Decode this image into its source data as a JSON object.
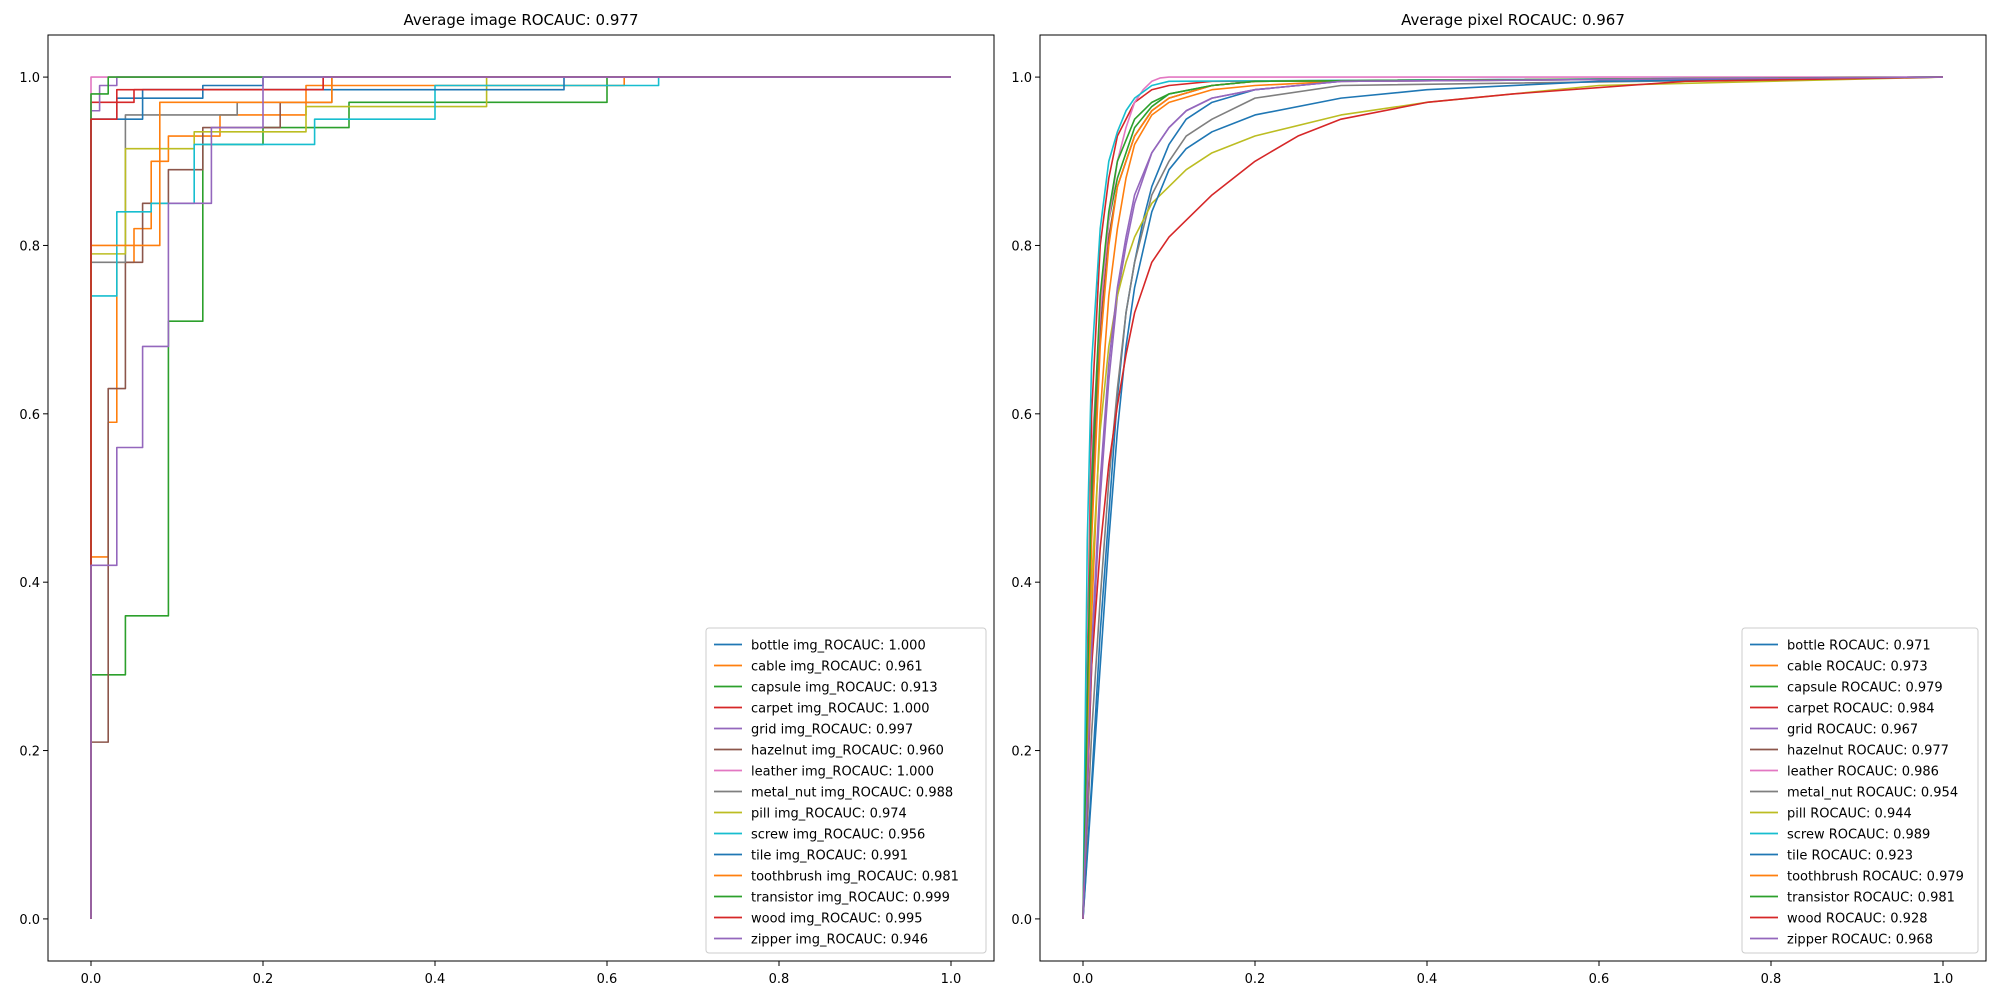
{
  "chart_data": [
    {
      "type": "line",
      "title": "Average image ROCAUC: 0.977",
      "xlabel": "",
      "ylabel": "",
      "xlim": [
        -0.05,
        1.05
      ],
      "ylim": [
        -0.05,
        1.05
      ],
      "xticks": [
        "0.0",
        "0.2",
        "0.4",
        "0.6",
        "0.8",
        "1.0"
      ],
      "yticks": [
        "0.0",
        "0.2",
        "0.4",
        "0.6",
        "0.8",
        "1.0"
      ],
      "grid": false,
      "legend_position": "lower-right",
      "series": [
        {
          "name": "bottle img_ROCAUC: 1.000",
          "color": "#1f77b4",
          "x": [
            0,
            0,
            0.03,
            0.03,
            0.13,
            0.13,
            0.2,
            0.2,
            1.0
          ],
          "y": [
            0,
            0.95,
            0.95,
            0.975,
            0.975,
            0.99,
            0.99,
            1.0,
            1.0
          ]
        },
        {
          "name": "cable img_ROCAUC: 0.961",
          "color": "#ff7f0e",
          "x": [
            0,
            0,
            0.02,
            0.02,
            0.03,
            0.03,
            0.05,
            0.05,
            0.07,
            0.07,
            0.09,
            0.09,
            0.15,
            0.15,
            0.25,
            0.25,
            0.62,
            0.62,
            1.0
          ],
          "y": [
            0,
            0.43,
            0.43,
            0.59,
            0.59,
            0.78,
            0.78,
            0.82,
            0.82,
            0.9,
            0.9,
            0.93,
            0.93,
            0.955,
            0.955,
            0.99,
            0.99,
            1.0,
            1.0
          ]
        },
        {
          "name": "capsule img_ROCAUC: 0.913",
          "color": "#2ca02c",
          "x": [
            0,
            0,
            0.04,
            0.04,
            0.09,
            0.09,
            0.13,
            0.13,
            0.2,
            0.2,
            0.3,
            0.3,
            0.6,
            0.6,
            1.0
          ],
          "y": [
            0,
            0.29,
            0.29,
            0.36,
            0.36,
            0.71,
            0.71,
            0.92,
            0.92,
            0.94,
            0.94,
            0.97,
            0.97,
            1.0,
            1.0
          ]
        },
        {
          "name": "carpet img_ROCAUC: 1.000",
          "color": "#d62728",
          "x": [
            0,
            0,
            0.05,
            0.05,
            0.27,
            0.27,
            1.0
          ],
          "y": [
            0,
            0.97,
            0.97,
            0.985,
            0.985,
            1.0,
            1.0
          ]
        },
        {
          "name": "grid img_ROCAUC: 0.997",
          "color": "#9467bd",
          "x": [
            0,
            0,
            0.01,
            0.01,
            0.03,
            0.03,
            1.0
          ],
          "y": [
            0,
            0.96,
            0.96,
            0.99,
            0.99,
            1.0,
            1.0
          ]
        },
        {
          "name": "hazelnut img_ROCAUC: 0.960",
          "color": "#8c564b",
          "x": [
            0,
            0,
            0.02,
            0.02,
            0.04,
            0.04,
            0.06,
            0.06,
            0.09,
            0.09,
            0.13,
            0.13,
            0.22,
            0.22,
            0.28,
            0.28,
            1.0
          ],
          "y": [
            0,
            0.21,
            0.21,
            0.63,
            0.63,
            0.78,
            0.78,
            0.85,
            0.85,
            0.89,
            0.89,
            0.94,
            0.94,
            0.97,
            0.97,
            1.0,
            1.0
          ]
        },
        {
          "name": "leather img_ROCAUC: 1.000",
          "color": "#e377c2",
          "x": [
            0,
            0,
            1.0
          ],
          "y": [
            0,
            1.0,
            1.0
          ]
        },
        {
          "name": "metal_nut img_ROCAUC: 0.988",
          "color": "#7f7f7f",
          "x": [
            0,
            0,
            0.04,
            0.04,
            0.17,
            0.17,
            0.28,
            0.28,
            1.0
          ],
          "y": [
            0,
            0.78,
            0.78,
            0.955,
            0.955,
            0.97,
            0.97,
            1.0,
            1.0
          ]
        },
        {
          "name": "pill img_ROCAUC: 0.974",
          "color": "#bcbd22",
          "x": [
            0,
            0,
            0.04,
            0.04,
            0.12,
            0.12,
            0.25,
            0.25,
            0.46,
            0.46,
            1.0
          ],
          "y": [
            0,
            0.79,
            0.79,
            0.915,
            0.915,
            0.935,
            0.935,
            0.965,
            0.965,
            1.0,
            1.0
          ]
        },
        {
          "name": "screw img_ROCAUC: 0.956",
          "color": "#17becf",
          "x": [
            0,
            0,
            0.03,
            0.03,
            0.07,
            0.07,
            0.12,
            0.12,
            0.26,
            0.26,
            0.4,
            0.4,
            0.66,
            0.66,
            1.0
          ],
          "y": [
            0,
            0.74,
            0.74,
            0.84,
            0.84,
            0.85,
            0.85,
            0.92,
            0.92,
            0.95,
            0.95,
            0.99,
            0.99,
            1.0,
            1.0
          ]
        },
        {
          "name": "tile img_ROCAUC: 0.991",
          "color": "#1f77b4",
          "x": [
            0,
            0,
            0.06,
            0.06,
            0.55,
            0.55,
            1.0
          ],
          "y": [
            0,
            0.95,
            0.95,
            0.985,
            0.985,
            1.0,
            1.0
          ]
        },
        {
          "name": "toothbrush img_ROCAUC: 0.981",
          "color": "#ff7f0e",
          "x": [
            0,
            0,
            0.08,
            0.08,
            0.28,
            0.28,
            1.0
          ],
          "y": [
            0,
            0.8,
            0.8,
            0.97,
            0.97,
            1.0,
            1.0
          ]
        },
        {
          "name": "transistor img_ROCAUC: 0.999",
          "color": "#2ca02c",
          "x": [
            0,
            0,
            0.02,
            0.02,
            1.0
          ],
          "y": [
            0,
            0.98,
            0.98,
            1.0,
            1.0
          ]
        },
        {
          "name": "wood img_ROCAUC: 0.995",
          "color": "#d62728",
          "x": [
            0,
            0,
            0.03,
            0.03,
            0.27,
            0.27,
            1.0
          ],
          "y": [
            0,
            0.95,
            0.95,
            0.985,
            0.985,
            1.0,
            1.0
          ]
        },
        {
          "name": "zipper img_ROCAUC: 0.946",
          "color": "#9467bd",
          "x": [
            0,
            0,
            0.03,
            0.03,
            0.06,
            0.06,
            0.09,
            0.09,
            0.14,
            0.14,
            0.2,
            0.2,
            1.0
          ],
          "y": [
            0,
            0.42,
            0.42,
            0.56,
            0.56,
            0.68,
            0.68,
            0.85,
            0.85,
            0.94,
            0.94,
            1.0,
            1.0
          ]
        }
      ]
    },
    {
      "type": "line",
      "title": "Average pixel ROCAUC: 0.967",
      "xlabel": "",
      "ylabel": "",
      "xlim": [
        -0.05,
        1.05
      ],
      "ylim": [
        -0.05,
        1.05
      ],
      "xticks": [
        "0.0",
        "0.2",
        "0.4",
        "0.6",
        "0.8",
        "1.0"
      ],
      "yticks": [
        "0.0",
        "0.2",
        "0.4",
        "0.6",
        "0.8",
        "1.0"
      ],
      "grid": false,
      "legend_position": "lower-right",
      "series": [
        {
          "name": "bottle ROCAUC: 0.971",
          "color": "#1f77b4",
          "x": [
            0,
            0.01,
            0.02,
            0.03,
            0.04,
            0.05,
            0.06,
            0.07,
            0.08,
            0.1,
            0.12,
            0.15,
            0.2,
            0.25,
            0.3,
            1.0
          ],
          "y": [
            0,
            0.16,
            0.34,
            0.48,
            0.62,
            0.72,
            0.78,
            0.83,
            0.87,
            0.92,
            0.95,
            0.97,
            0.985,
            0.99,
            0.995,
            1.0
          ]
        },
        {
          "name": "cable ROCAUC: 0.973",
          "color": "#ff7f0e",
          "x": [
            0,
            0.01,
            0.02,
            0.03,
            0.04,
            0.05,
            0.06,
            0.08,
            0.1,
            0.15,
            0.2,
            0.3,
            1.0
          ],
          "y": [
            0,
            0.36,
            0.6,
            0.74,
            0.82,
            0.88,
            0.92,
            0.955,
            0.97,
            0.985,
            0.99,
            0.995,
            1.0
          ]
        },
        {
          "name": "capsule ROCAUC: 0.979",
          "color": "#2ca02c",
          "x": [
            0,
            0.01,
            0.02,
            0.03,
            0.04,
            0.06,
            0.08,
            0.1,
            0.15,
            0.2,
            1.0
          ],
          "y": [
            0,
            0.5,
            0.72,
            0.83,
            0.88,
            0.94,
            0.965,
            0.98,
            0.99,
            0.995,
            1.0
          ]
        },
        {
          "name": "carpet ROCAUC: 0.984",
          "color": "#d62728",
          "x": [
            0,
            0.01,
            0.02,
            0.03,
            0.04,
            0.06,
            0.08,
            0.1,
            0.15,
            1.0
          ],
          "y": [
            0,
            0.6,
            0.8,
            0.88,
            0.93,
            0.97,
            0.985,
            0.99,
            0.995,
            1.0
          ]
        },
        {
          "name": "grid ROCAUC: 0.967",
          "color": "#9467bd",
          "x": [
            0,
            0.01,
            0.02,
            0.03,
            0.04,
            0.05,
            0.06,
            0.08,
            0.1,
            0.12,
            0.15,
            0.2,
            0.3,
            1.0
          ],
          "y": [
            0,
            0.3,
            0.5,
            0.64,
            0.74,
            0.8,
            0.85,
            0.91,
            0.94,
            0.96,
            0.975,
            0.985,
            0.995,
            1.0
          ]
        },
        {
          "name": "hazelnut ROCAUC: 0.977",
          "color": "#8c564b",
          "x": [
            0,
            0.01,
            0.02,
            0.03,
            0.04,
            0.06,
            0.08,
            0.1,
            0.15,
            0.2,
            1.0
          ],
          "y": [
            0,
            0.48,
            0.7,
            0.81,
            0.87,
            0.93,
            0.96,
            0.975,
            0.99,
            0.995,
            1.0
          ]
        },
        {
          "name": "leather ROCAUC: 0.986",
          "color": "#e377c2",
          "x": [
            0,
            0.01,
            0.02,
            0.03,
            0.04,
            0.05,
            0.06,
            0.07,
            0.08,
            0.09,
            0.1,
            1.0
          ],
          "y": [
            0,
            0.55,
            0.72,
            0.83,
            0.9,
            0.94,
            0.97,
            0.985,
            0.995,
            0.999,
            1.0,
            1.0
          ]
        },
        {
          "name": "metal_nut ROCAUC: 0.954",
          "color": "#7f7f7f",
          "x": [
            0,
            0.01,
            0.02,
            0.03,
            0.04,
            0.05,
            0.06,
            0.08,
            0.1,
            0.12,
            0.15,
            0.2,
            0.3,
            1.0
          ],
          "y": [
            0,
            0.22,
            0.38,
            0.52,
            0.63,
            0.72,
            0.78,
            0.86,
            0.9,
            0.93,
            0.95,
            0.975,
            0.99,
            1.0
          ]
        },
        {
          "name": "pill ROCAUC: 0.944",
          "color": "#bcbd22",
          "x": [
            0,
            0.01,
            0.02,
            0.03,
            0.04,
            0.05,
            0.06,
            0.08,
            0.1,
            0.12,
            0.15,
            0.2,
            0.3,
            0.4,
            0.6,
            1.0
          ],
          "y": [
            0,
            0.4,
            0.58,
            0.68,
            0.74,
            0.78,
            0.81,
            0.85,
            0.87,
            0.89,
            0.91,
            0.93,
            0.955,
            0.97,
            0.99,
            1.0
          ]
        },
        {
          "name": "screw ROCAUC: 0.989",
          "color": "#17becf",
          "x": [
            0,
            0.005,
            0.01,
            0.02,
            0.03,
            0.04,
            0.05,
            0.06,
            0.08,
            0.1,
            1.0
          ],
          "y": [
            0,
            0.45,
            0.66,
            0.82,
            0.9,
            0.935,
            0.96,
            0.975,
            0.99,
            0.995,
            1.0
          ]
        },
        {
          "name": "tile ROCAUC: 0.923",
          "color": "#1f77b4",
          "x": [
            0,
            0.01,
            0.02,
            0.03,
            0.04,
            0.05,
            0.06,
            0.08,
            0.1,
            0.12,
            0.15,
            0.2,
            0.3,
            0.4,
            0.6,
            1.0
          ],
          "y": [
            0,
            0.15,
            0.3,
            0.45,
            0.58,
            0.68,
            0.75,
            0.84,
            0.89,
            0.915,
            0.935,
            0.955,
            0.975,
            0.985,
            0.995,
            1.0
          ]
        },
        {
          "name": "toothbrush ROCAUC: 0.979",
          "color": "#ff7f0e",
          "x": [
            0,
            0.01,
            0.02,
            0.03,
            0.04,
            0.06,
            0.08,
            0.1,
            0.15,
            0.2,
            1.0
          ],
          "y": [
            0,
            0.45,
            0.68,
            0.8,
            0.87,
            0.93,
            0.96,
            0.975,
            0.99,
            0.995,
            1.0
          ]
        },
        {
          "name": "transistor ROCAUC: 0.981",
          "color": "#2ca02c",
          "x": [
            0,
            0.01,
            0.02,
            0.03,
            0.04,
            0.06,
            0.08,
            0.1,
            0.15,
            0.2,
            1.0
          ],
          "y": [
            0,
            0.52,
            0.74,
            0.84,
            0.9,
            0.95,
            0.97,
            0.98,
            0.99,
            0.995,
            1.0
          ]
        },
        {
          "name": "wood ROCAUC: 0.928",
          "color": "#d62728",
          "x": [
            0,
            0.01,
            0.02,
            0.03,
            0.04,
            0.05,
            0.06,
            0.08,
            0.1,
            0.12,
            0.15,
            0.2,
            0.25,
            0.3,
            0.4,
            0.5,
            0.7,
            1.0
          ],
          "y": [
            0,
            0.3,
            0.44,
            0.54,
            0.61,
            0.67,
            0.72,
            0.78,
            0.81,
            0.83,
            0.86,
            0.9,
            0.93,
            0.95,
            0.97,
            0.98,
            0.995,
            1.0
          ]
        },
        {
          "name": "zipper ROCAUC: 0.968",
          "color": "#9467bd",
          "x": [
            0,
            0.01,
            0.02,
            0.03,
            0.04,
            0.05,
            0.06,
            0.08,
            0.1,
            0.12,
            0.15,
            0.2,
            0.3,
            1.0
          ],
          "y": [
            0,
            0.32,
            0.52,
            0.66,
            0.75,
            0.81,
            0.86,
            0.91,
            0.94,
            0.96,
            0.975,
            0.985,
            0.995,
            1.0
          ]
        }
      ]
    }
  ]
}
